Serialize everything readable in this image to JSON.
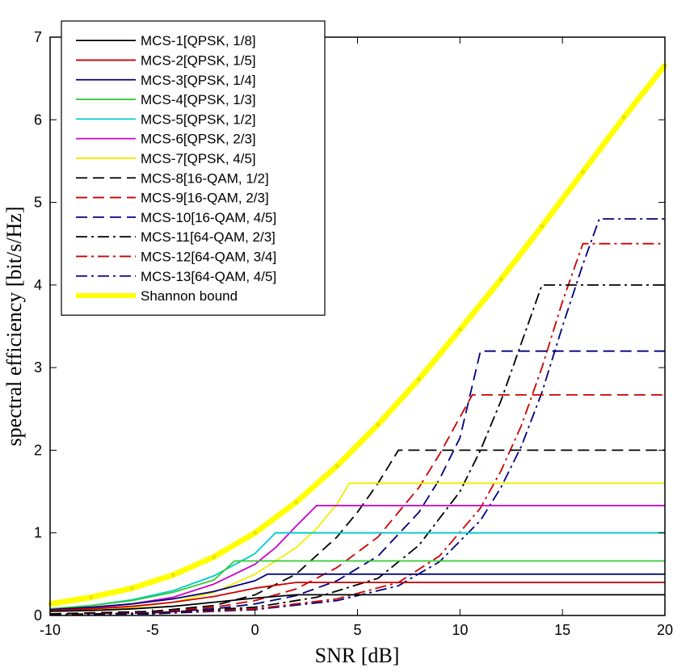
{
  "chart_data": {
    "type": "line",
    "title": "",
    "xlabel": "SNR [dB]",
    "ylabel": "spectral efficiency [bit/s/Hz]",
    "xlim": [
      -10,
      20
    ],
    "ylim": [
      0,
      7
    ],
    "xticks": [
      -10,
      -5,
      0,
      5,
      10,
      15,
      20
    ],
    "yticks": [
      0,
      1,
      2,
      3,
      4,
      5,
      6,
      7
    ],
    "grid": false,
    "legend_position": "top-left",
    "series": [
      {
        "name": "MCS-1[QPSK, 1/8]",
        "color": "#000000",
        "dash": "solid",
        "x": [
          -10,
          -8,
          -6,
          -4,
          -2,
          0,
          2,
          20
        ],
        "y": [
          0.05,
          0.06,
          0.08,
          0.11,
          0.16,
          0.21,
          0.25,
          0.25
        ]
      },
      {
        "name": "MCS-2[QPSK, 1/5]",
        "color": "#cc0000",
        "dash": "solid",
        "x": [
          -10,
          -8,
          -6,
          -4,
          -2,
          0,
          2,
          20
        ],
        "y": [
          0.06,
          0.08,
          0.11,
          0.16,
          0.23,
          0.33,
          0.4,
          0.4
        ]
      },
      {
        "name": "MCS-3[QPSK, 1/4]",
        "color": "#000080",
        "dash": "solid",
        "x": [
          -10,
          -8,
          -6,
          -4,
          -2,
          0,
          0.6,
          20
        ],
        "y": [
          0.07,
          0.1,
          0.14,
          0.2,
          0.29,
          0.42,
          0.5,
          0.5
        ]
      },
      {
        "name": "MCS-4[QPSK, 1/3]",
        "color": "#33cc33",
        "dash": "solid",
        "x": [
          -10,
          -8,
          -6,
          -4,
          -2,
          -1,
          20
        ],
        "y": [
          0.08,
          0.12,
          0.18,
          0.28,
          0.43,
          0.66,
          0.66
        ]
      },
      {
        "name": "MCS-5[QPSK, 1/2]",
        "color": "#00cccc",
        "dash": "solid",
        "x": [
          -10,
          -8,
          -6,
          -4,
          -2,
          0,
          1,
          20
        ],
        "y": [
          0.07,
          0.12,
          0.19,
          0.3,
          0.48,
          0.75,
          1.0,
          1.0
        ]
      },
      {
        "name": "MCS-6[QPSK, 2/3]",
        "color": "#cc00cc",
        "dash": "solid",
        "x": [
          -10,
          -8,
          -6,
          -4,
          -2,
          0,
          1,
          2,
          3,
          20
        ],
        "y": [
          0.06,
          0.09,
          0.14,
          0.22,
          0.38,
          0.62,
          0.82,
          1.08,
          1.33,
          1.33
        ]
      },
      {
        "name": "MCS-7[QPSK, 4/5]",
        "color": "#eeee00",
        "dash": "solid",
        "x": [
          -10,
          -8,
          -6,
          -4,
          -2,
          0,
          2,
          3,
          4,
          4.6,
          20
        ],
        "y": [
          0.05,
          0.07,
          0.1,
          0.16,
          0.28,
          0.5,
          0.82,
          1.05,
          1.35,
          1.6,
          1.6
        ]
      },
      {
        "name": "MCS-8[16-QAM, 1/2]",
        "color": "#000000",
        "dash": "dashed",
        "x": [
          -10,
          -5,
          -2,
          0,
          2,
          4,
          5,
          6,
          7,
          20
        ],
        "y": [
          0.02,
          0.05,
          0.12,
          0.25,
          0.5,
          0.95,
          1.25,
          1.6,
          2.0,
          2.0
        ]
      },
      {
        "name": "MCS-9[16-QAM, 2/3]",
        "color": "#cc0000",
        "dash": "dashed",
        "x": [
          -10,
          -5,
          -2,
          0,
          2,
          4,
          6,
          8,
          9,
          10,
          10.6,
          20
        ],
        "y": [
          0.02,
          0.04,
          0.1,
          0.18,
          0.32,
          0.58,
          0.95,
          1.55,
          1.95,
          2.4,
          2.67,
          2.67
        ]
      },
      {
        "name": "MCS-10[16-QAM, 4/5]",
        "color": "#000080",
        "dash": "dashed",
        "x": [
          -10,
          -5,
          -2,
          0,
          2,
          4,
          6,
          8,
          9,
          10,
          11,
          20
        ],
        "y": [
          0.02,
          0.03,
          0.08,
          0.14,
          0.24,
          0.42,
          0.72,
          1.25,
          1.65,
          2.15,
          3.2,
          3.2
        ]
      },
      {
        "name": "MCS-11[64-QAM, 2/3]",
        "color": "#000000",
        "dash": "dashdot",
        "x": [
          -10,
          -5,
          0,
          3,
          6,
          8,
          10,
          11,
          12,
          13,
          14,
          20
        ],
        "y": [
          0.01,
          0.03,
          0.1,
          0.22,
          0.45,
          0.85,
          1.5,
          2.0,
          2.6,
          3.3,
          4.0,
          4.0
        ]
      },
      {
        "name": "MCS-12[64-QAM, 3/4]",
        "color": "#cc0000",
        "dash": "dashdot",
        "x": [
          -10,
          -5,
          0,
          4,
          7,
          9,
          11,
          12,
          13,
          14,
          15,
          16,
          20
        ],
        "y": [
          0.01,
          0.03,
          0.08,
          0.2,
          0.4,
          0.72,
          1.3,
          1.75,
          2.3,
          3.0,
          3.8,
          4.5,
          4.5
        ]
      },
      {
        "name": "MCS-13[64-QAM, 4/5]",
        "color": "#000080",
        "dash": "dashdot",
        "x": [
          -10,
          -5,
          0,
          4,
          7,
          9,
          11,
          12,
          13,
          14,
          15,
          16,
          16.8,
          20
        ],
        "y": [
          0.01,
          0.02,
          0.07,
          0.18,
          0.36,
          0.65,
          1.15,
          1.55,
          2.05,
          2.7,
          3.5,
          4.25,
          4.8,
          4.8
        ]
      },
      {
        "name": "Shannon bound",
        "color": "#ffff00",
        "dash": "thick",
        "x": [
          -10,
          -8,
          -6,
          -4,
          -2,
          0,
          2,
          4,
          6,
          8,
          10,
          12,
          14,
          16,
          18,
          20
        ],
        "y": [
          0.14,
          0.22,
          0.33,
          0.49,
          0.71,
          1.0,
          1.37,
          1.81,
          2.31,
          2.86,
          3.46,
          4.07,
          4.71,
          5.37,
          6.03,
          6.66
        ]
      }
    ]
  }
}
